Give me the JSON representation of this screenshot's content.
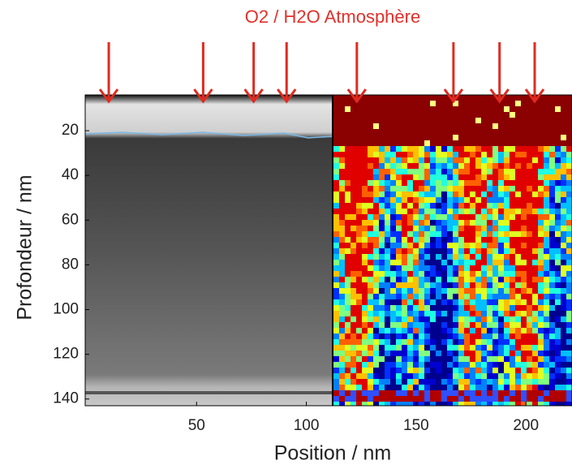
{
  "chart_data": {
    "type": "image",
    "title": "O2 / H2O Atmosphère",
    "x_label": "Position  /  nm",
    "y_label": "Profondeur  /  nm",
    "xlim": [
      0,
      221
    ],
    "ylim": [
      4,
      143
    ],
    "xticks": [
      50,
      100,
      150,
      200
    ],
    "yticks": [
      20,
      40,
      60,
      80,
      100,
      120,
      140
    ],
    "arrows": [
      10,
      53,
      76,
      91,
      123,
      167,
      188,
      204
    ],
    "arrow_color": "#e02b20"
  }
}
